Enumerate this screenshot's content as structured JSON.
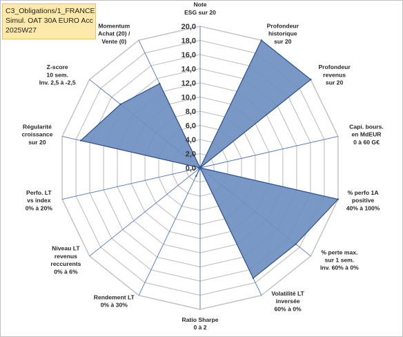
{
  "header": {
    "line1": "C3_Obligations/1_FRANCE",
    "line2": "Simul. OAT 30A EURO Acc",
    "line3": "2025W27"
  },
  "colors": {
    "fill": "#6f8fc0",
    "stroke": "#2c4f8c",
    "grid": "#bfbfbf",
    "spoke": "#4a74c7",
    "title_bg": "#fde9a9"
  },
  "chart_data": {
    "type": "radar",
    "title": "",
    "rlim": [
      0,
      20
    ],
    "ticks": [
      "0,0",
      "2,0",
      "4,0",
      "6,0",
      "8,0",
      "10,0",
      "12,0",
      "14,0",
      "16,0",
      "18,0",
      "20,0"
    ],
    "grid": true,
    "axes": [
      {
        "lines": [
          "Note",
          "ESG sur 20"
        ],
        "value": 0
      },
      {
        "lines": [
          "Profondeur",
          "historique",
          "sur 20"
        ],
        "value": 20
      },
      {
        "lines": [
          "Profondeur",
          "revenus",
          "sur 20"
        ],
        "value": 20
      },
      {
        "lines": [
          "Capi. bours.",
          "en MdEUR",
          "0 à 60 G€"
        ],
        "value": 0
      },
      {
        "lines": [
          "% perfo 1A",
          "positive",
          "40% à 100%"
        ],
        "value": 20
      },
      {
        "lines": [
          "% perte max.",
          "sur 1 sem.",
          "Inv. 60% à 0%"
        ],
        "value": 17.3
      },
      {
        "lines": [
          "Volatilité LT",
          "inversée",
          "60% à 0%"
        ],
        "value": 17.3
      },
      {
        "lines": [
          "Ratio Sharpe",
          "0 à 2"
        ],
        "value": 0
      },
      {
        "lines": [
          "Rendement LT",
          "0% à 30%"
        ],
        "value": 1.3
      },
      {
        "lines": [
          "Niveau LT",
          "revenus",
          "reccurents",
          "0% à 6%"
        ],
        "value": 0
      },
      {
        "lines": [
          "Perfo. LT",
          "vs index",
          "0% à 20%"
        ],
        "value": 0
      },
      {
        "lines": [
          "Régularité",
          "croissance",
          "sur 20"
        ],
        "value": 17.3
      },
      {
        "lines": [
          "Z-score",
          "10 sem.",
          "Inv. 2,5 à -2,5"
        ],
        "value": 14.4
      },
      {
        "lines": [
          "Momentum",
          "Achat (20) /",
          "Vente (0)"
        ],
        "value": 13.2
      }
    ]
  }
}
